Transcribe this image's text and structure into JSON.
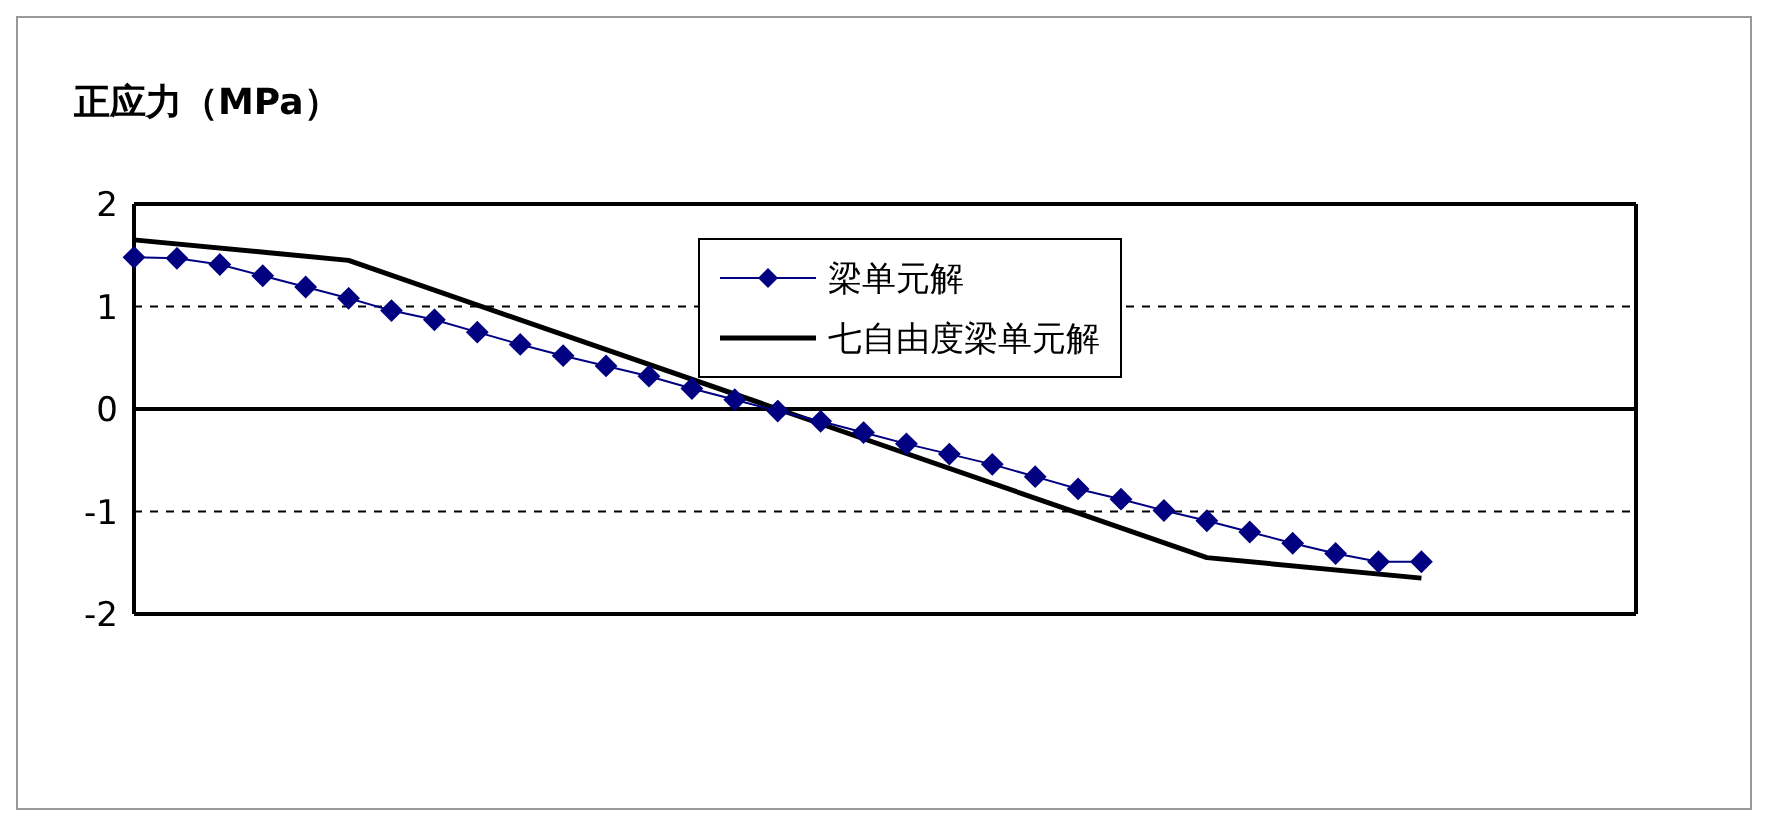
{
  "chart_data": {
    "type": "line",
    "title": "正应力（MPa）",
    "categories": [
      null,
      null,
      null,
      null,
      null,
      null,
      null,
      null,
      null,
      null,
      null,
      null,
      null,
      null,
      null,
      null,
      null,
      null,
      null,
      null,
      null,
      null,
      null,
      null,
      null,
      null,
      null,
      null,
      null,
      null,
      null,
      null,
      null,
      null,
      null,
      null
    ],
    "series": [
      {
        "name": "梁单元解",
        "color": "#000080",
        "marker": "diamond",
        "values": [
          1.48,
          1.47,
          1.41,
          1.3,
          1.19,
          1.08,
          0.96,
          0.87,
          0.75,
          0.63,
          0.52,
          0.42,
          0.32,
          0.2,
          0.09,
          -0.02,
          -0.12,
          -0.23,
          -0.34,
          -0.44,
          -0.54,
          -0.66,
          -0.78,
          -0.88,
          -0.99,
          -1.09,
          -1.2,
          -1.31,
          -1.41,
          -1.49,
          -1.49,
          null,
          null,
          null,
          null,
          null
        ]
      },
      {
        "name": "七自由度梁单元解",
        "color": "#000000",
        "marker": "none",
        "values": [
          1.65,
          null,
          null,
          null,
          null,
          1.45,
          null,
          null,
          null,
          null,
          null,
          null,
          null,
          null,
          null,
          0,
          null,
          null,
          null,
          null,
          null,
          null,
          null,
          null,
          null,
          -1.45,
          null,
          null,
          null,
          null,
          -1.65,
          null,
          null,
          null,
          null,
          null
        ]
      }
    ],
    "ylim": [
      -2,
      2
    ],
    "yticks": [
      -2,
      -1,
      0,
      1,
      2
    ],
    "grid": "y",
    "tick_labels": "y",
    "legend": "top",
    "ref_lines": [
      {
        "axis": "y",
        "value": 0,
        "color": "#000000",
        "line_style": "solid"
      }
    ]
  }
}
